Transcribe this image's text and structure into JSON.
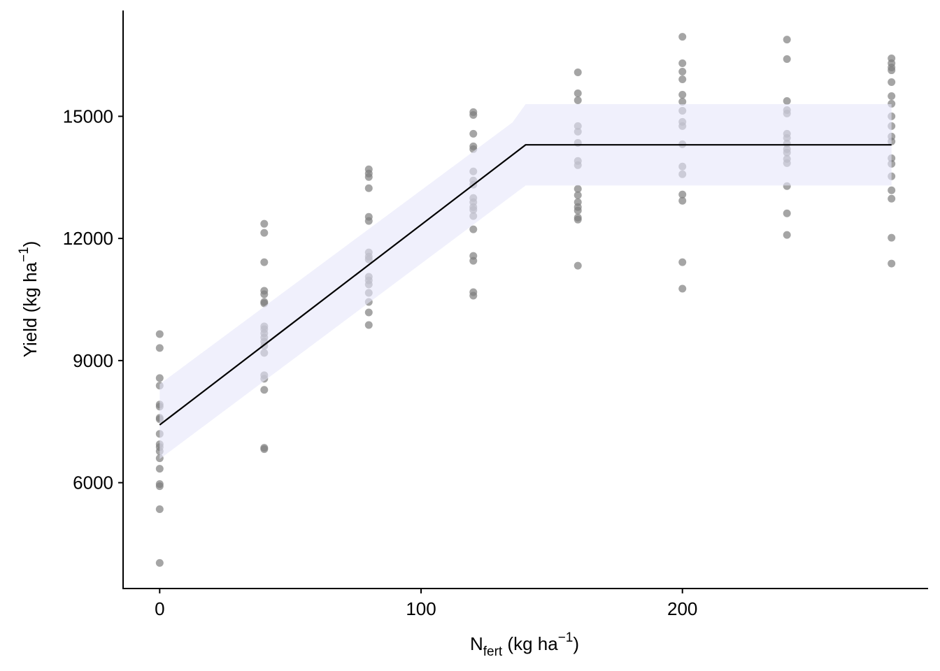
{
  "chart_data": {
    "type": "scatter",
    "xlabel": {
      "main": "N",
      "sub": "fert",
      "rest": " (kg ha",
      "sup": "−1",
      "close": ")"
    },
    "ylabel": {
      "main": "Yield (kg ha",
      "sup": "−1",
      "close": ")"
    },
    "xlim": [
      -14,
      294
    ],
    "xticks": [
      0,
      100,
      200
    ],
    "ylim": [
      3400,
      17600
    ],
    "yticks": [
      6000,
      9000,
      12000,
      15000
    ],
    "grid": false,
    "points": {
      "color": "#7f7f7f",
      "x": [
        0,
        0,
        0,
        0,
        0,
        0,
        0,
        0,
        0,
        0,
        0,
        0,
        0,
        0,
        0,
        0,
        0,
        0,
        40,
        40,
        40,
        40,
        40,
        40,
        40,
        40,
        40,
        40,
        40,
        40,
        40,
        40,
        40,
        40,
        40,
        40,
        40,
        80,
        80,
        80,
        80,
        80,
        80,
        80,
        80,
        80,
        80,
        80,
        80,
        80,
        80,
        80,
        80,
        120,
        120,
        120,
        120,
        120,
        120,
        120,
        120,
        120,
        120,
        120,
        120,
        120,
        120,
        120,
        120,
        120,
        120,
        160,
        160,
        160,
        160,
        160,
        160,
        160,
        160,
        160,
        160,
        160,
        160,
        160,
        160,
        160,
        160,
        200,
        200,
        200,
        200,
        200,
        200,
        200,
        200,
        200,
        200,
        200,
        200,
        200,
        200,
        200,
        200,
        240,
        240,
        240,
        240,
        240,
        240,
        240,
        240,
        240,
        240,
        240,
        240,
        240,
        240,
        240,
        280,
        280,
        280,
        280,
        280,
        280,
        280,
        280,
        280,
        280,
        280,
        280,
        280,
        280,
        280,
        280,
        280,
        280
      ],
      "y": [
        9651,
        9309,
        8571,
        8383,
        7920,
        7869,
        7594,
        7560,
        7200,
        6943,
        6874,
        6771,
        6600,
        6343,
        5966,
        5914,
        5349,
        4029,
        12360,
        12137,
        11417,
        10714,
        10629,
        10440,
        10406,
        9840,
        9771,
        9669,
        9566,
        9463,
        9360,
        9189,
        8640,
        8554,
        8280,
        6857,
        6823,
        13697,
        13594,
        13509,
        13234,
        12531,
        12429,
        11657,
        11554,
        11486,
        11057,
        10971,
        10869,
        10663,
        10440,
        10183,
        9874,
        15103,
        15034,
        14571,
        14263,
        14194,
        13646,
        13423,
        13320,
        12994,
        12891,
        12771,
        12703,
        12549,
        12223,
        11571,
        11451,
        10680,
        10594,
        16080,
        15566,
        15394,
        14760,
        14623,
        14349,
        13903,
        13800,
        13217,
        13063,
        12891,
        12771,
        12686,
        12514,
        12463,
        11331,
        16954,
        16303,
        16097,
        15909,
        15531,
        15360,
        15137,
        14863,
        14760,
        14314,
        13766,
        13577,
        13080,
        12926,
        11417,
        10766,
        16886,
        16406,
        15377,
        15154,
        15069,
        14571,
        14469,
        14331,
        14194,
        14109,
        13954,
        13851,
        13286,
        12617,
        12086,
        16423,
        16303,
        16200,
        16131,
        15840,
        15497,
        15309,
        15000,
        14760,
        14503,
        14383,
        13971,
        13834,
        13526,
        13183,
        12977,
        12017,
        11383
      ]
    },
    "ribbon": {
      "color": "#e6e6fa",
      "x": [
        0,
        135,
        140,
        280
      ],
      "upper": [
        8420,
        14850,
        15300,
        15300
      ],
      "lower": [
        6580,
        13060,
        13300,
        13300
      ]
    },
    "fit": {
      "color": "#000000",
      "x": [
        0,
        140,
        280
      ],
      "y": [
        7420,
        14300,
        14300
      ]
    }
  }
}
